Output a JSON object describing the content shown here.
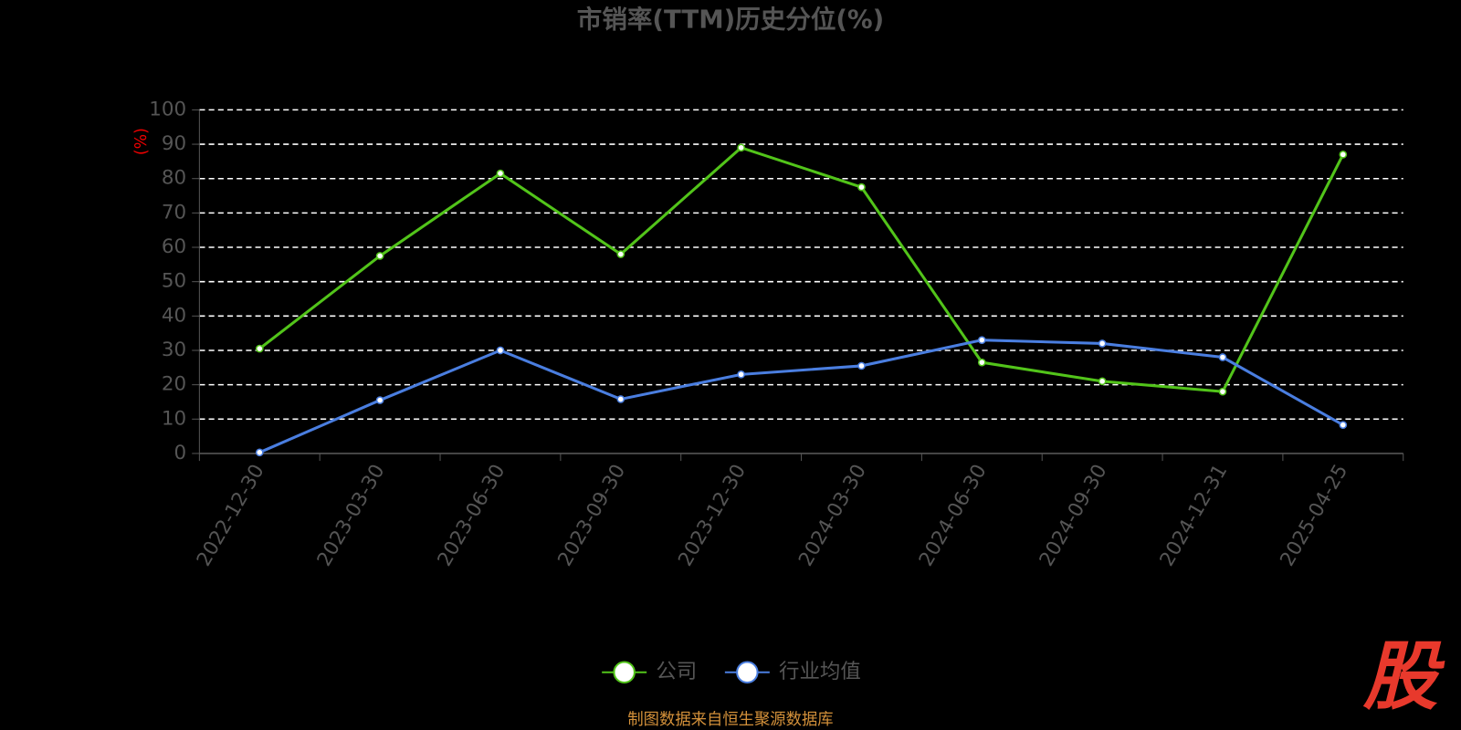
{
  "chart_data": {
    "type": "line",
    "title": "市销率(TTM)历史分位(%)",
    "y_label": "(%)",
    "categories": [
      "2022-12-30",
      "2023-03-30",
      "2023-06-30",
      "2023-09-30",
      "2023-12-30",
      "2024-03-30",
      "2024-06-30",
      "2024-09-30",
      "2024-12-31",
      "2025-04-25"
    ],
    "series": [
      {
        "name": "公司",
        "color": "#52c41a",
        "values": [
          30.5,
          57.5,
          81.5,
          58,
          89,
          77.5,
          26.5,
          21,
          18,
          87
        ]
      },
      {
        "name": "行业均值",
        "color": "#4a7ee0",
        "values": [
          0.3,
          15.5,
          30,
          15.8,
          23,
          25.5,
          33,
          32,
          28,
          8.3
        ]
      }
    ],
    "ylim": [
      0,
      100
    ],
    "yticks": [
      0,
      10,
      20,
      30,
      40,
      50,
      60,
      70,
      80,
      90,
      100
    ],
    "grid": true
  },
  "source": "制图数据来自恒生聚源数据库",
  "watermark": "股"
}
